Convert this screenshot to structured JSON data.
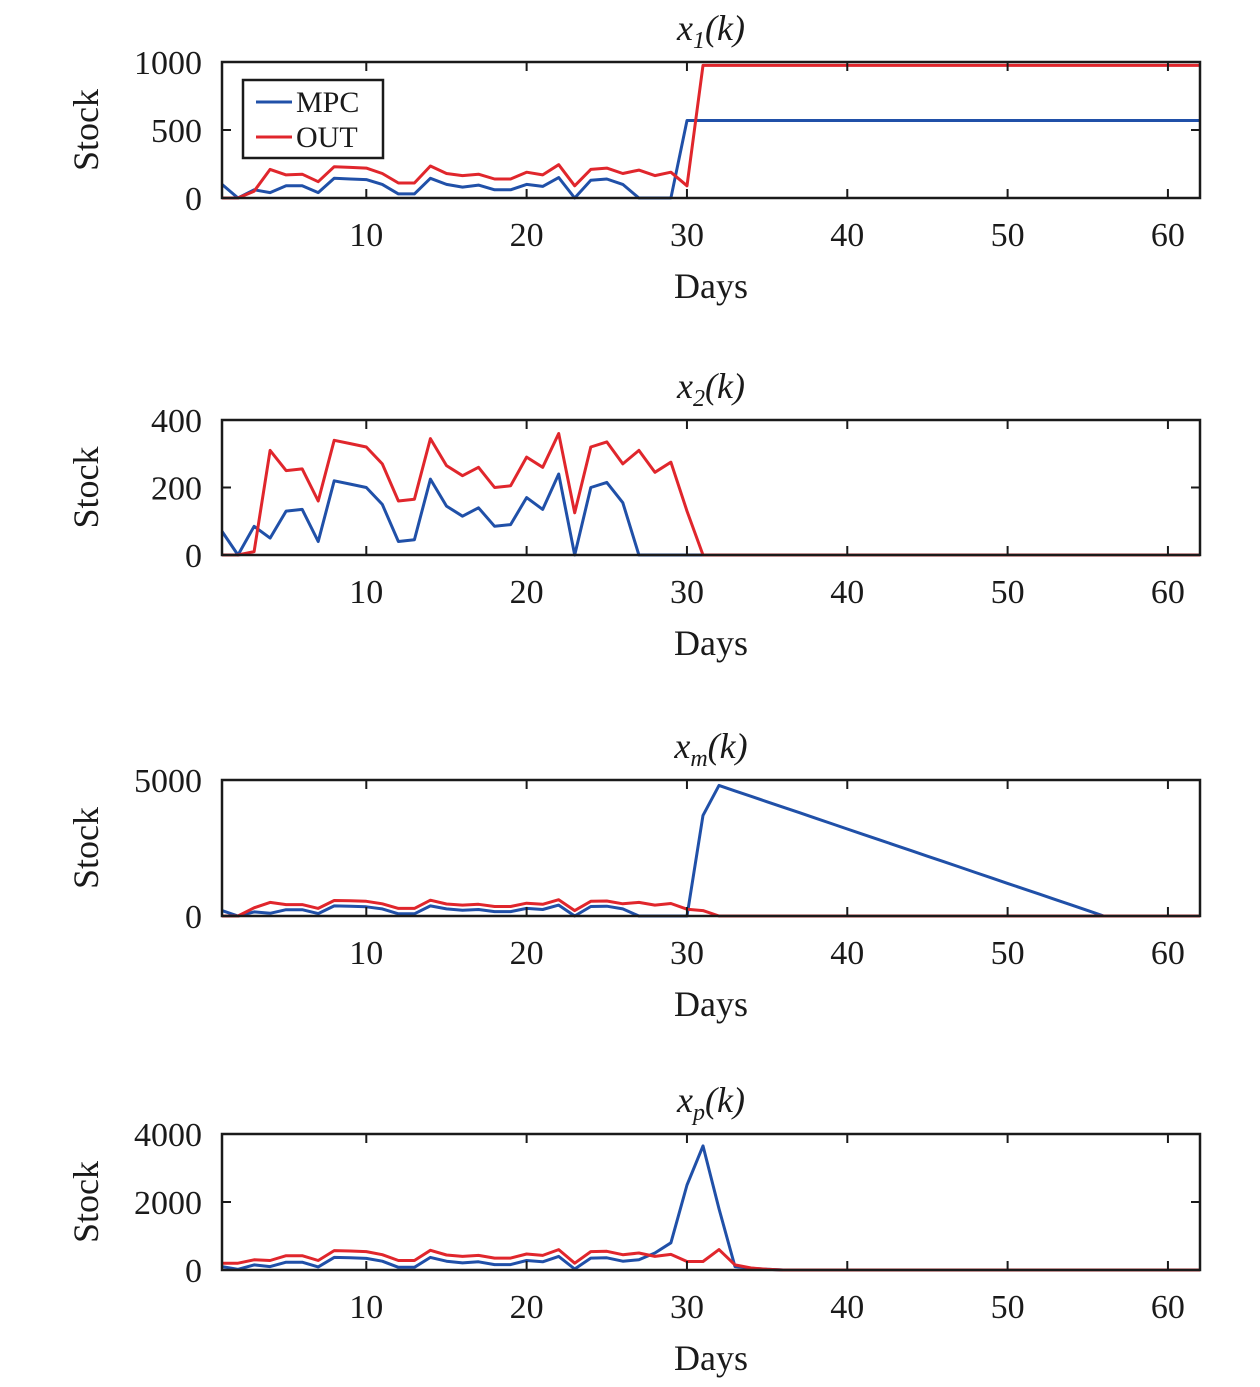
{
  "colors": {
    "MPC": "#2050a8",
    "OUT": "#e0262c"
  },
  "legend": {
    "entries": [
      "MPC",
      "OUT"
    ],
    "placement": "top-left"
  },
  "chart_data": [
    {
      "type": "line",
      "title": "x",
      "title_sub": "1",
      "title_arg": "(k)",
      "xlabel": "Days",
      "ylabel": "Stock",
      "xlim": [
        1,
        62
      ],
      "ylim": [
        0,
        1000
      ],
      "xticks": [
        10,
        20,
        30,
        40,
        50,
        60
      ],
      "yticks": [
        0,
        500,
        1000
      ],
      "x": [
        1,
        2,
        3,
        4,
        5,
        6,
        7,
        8,
        9,
        10,
        11,
        12,
        13,
        14,
        15,
        16,
        17,
        18,
        19,
        20,
        21,
        22,
        23,
        24,
        25,
        26,
        27,
        28,
        29,
        30,
        31,
        32,
        33,
        34,
        35,
        36,
        37,
        38,
        39,
        40,
        41,
        42,
        43,
        44,
        45,
        46,
        47,
        48,
        49,
        50,
        51,
        52,
        53,
        54,
        55,
        56,
        57,
        58,
        59,
        60,
        61,
        62
      ],
      "series": [
        {
          "name": "MPC",
          "values": [
            100,
            0,
            60,
            40,
            90,
            90,
            40,
            145,
            140,
            135,
            100,
            30,
            30,
            145,
            100,
            80,
            95,
            60,
            60,
            100,
            85,
            150,
            0,
            130,
            140,
            100,
            0,
            0,
            0,
            570,
            570,
            570,
            570,
            570,
            570,
            570,
            570,
            570,
            570,
            570,
            570,
            570,
            570,
            570,
            570,
            570,
            570,
            570,
            570,
            570,
            570,
            570,
            570,
            570,
            570,
            570,
            570,
            570,
            570,
            570,
            570,
            570
          ]
        },
        {
          "name": "OUT",
          "values": [
            0,
            0,
            50,
            210,
            170,
            175,
            120,
            230,
            225,
            220,
            180,
            110,
            110,
            235,
            180,
            165,
            175,
            140,
            140,
            190,
            170,
            245,
            90,
            210,
            220,
            180,
            205,
            165,
            190,
            90,
            975,
            975,
            975,
            975,
            975,
            975,
            975,
            975,
            975,
            975,
            975,
            975,
            975,
            975,
            975,
            975,
            975,
            975,
            975,
            975,
            975,
            975,
            975,
            975,
            975,
            975,
            975,
            975,
            975,
            975,
            975,
            975
          ]
        }
      ]
    },
    {
      "type": "line",
      "title": "x",
      "title_sub": "2",
      "title_arg": "(k)",
      "xlabel": "Days",
      "ylabel": "Stock",
      "xlim": [
        1,
        62
      ],
      "ylim": [
        0,
        400
      ],
      "xticks": [
        10,
        20,
        30,
        40,
        50,
        60
      ],
      "yticks": [
        0,
        200,
        400
      ],
      "x": [
        1,
        2,
        3,
        4,
        5,
        6,
        7,
        8,
        9,
        10,
        11,
        12,
        13,
        14,
        15,
        16,
        17,
        18,
        19,
        20,
        21,
        22,
        23,
        24,
        25,
        26,
        27,
        28,
        29,
        30,
        31,
        32,
        33,
        34,
        35,
        36,
        37,
        38,
        39,
        40,
        41,
        42,
        43,
        44,
        45,
        46,
        47,
        48,
        49,
        50,
        51,
        52,
        53,
        54,
        55,
        56,
        57,
        58,
        59,
        60,
        61,
        62
      ],
      "series": [
        {
          "name": "MPC",
          "values": [
            70,
            0,
            85,
            50,
            130,
            135,
            40,
            220,
            210,
            200,
            150,
            40,
            45,
            225,
            145,
            115,
            140,
            85,
            90,
            170,
            135,
            240,
            0,
            200,
            215,
            155,
            0,
            0,
            0,
            0,
            0,
            0,
            0,
            0,
            0,
            0,
            0,
            0,
            0,
            0,
            0,
            0,
            0,
            0,
            0,
            0,
            0,
            0,
            0,
            0,
            0,
            0,
            0,
            0,
            0,
            0,
            0,
            0,
            0,
            0,
            0,
            0
          ]
        },
        {
          "name": "OUT",
          "values": [
            0,
            0,
            10,
            310,
            250,
            255,
            160,
            340,
            330,
            320,
            270,
            160,
            165,
            345,
            265,
            235,
            260,
            200,
            205,
            290,
            260,
            360,
            125,
            320,
            335,
            270,
            310,
            245,
            275,
            130,
            0,
            0,
            0,
            0,
            0,
            0,
            0,
            0,
            0,
            0,
            0,
            0,
            0,
            0,
            0,
            0,
            0,
            0,
            0,
            0,
            0,
            0,
            0,
            0,
            0,
            0,
            0,
            0,
            0,
            0,
            0,
            0
          ]
        }
      ]
    },
    {
      "type": "line",
      "title": "x",
      "title_sub": "m",
      "title_arg": "(k)",
      "xlabel": "Days",
      "ylabel": "Stock",
      "xlim": [
        1,
        62
      ],
      "ylim": [
        0,
        5000
      ],
      "xticks": [
        10,
        20,
        30,
        40,
        50,
        60
      ],
      "yticks": [
        0,
        5000
      ],
      "x": [
        1,
        2,
        3,
        4,
        5,
        6,
        7,
        8,
        9,
        10,
        11,
        12,
        13,
        14,
        15,
        16,
        17,
        18,
        19,
        20,
        21,
        22,
        23,
        24,
        25,
        26,
        27,
        28,
        29,
        30,
        31,
        32,
        33,
        34,
        35,
        36,
        37,
        38,
        39,
        40,
        41,
        42,
        43,
        44,
        45,
        46,
        47,
        48,
        49,
        50,
        51,
        52,
        53,
        54,
        55,
        56,
        57,
        58,
        59,
        60,
        61,
        62
      ],
      "series": [
        {
          "name": "MPC",
          "values": [
            200,
            0,
            150,
            100,
            230,
            230,
            90,
            370,
            360,
            340,
            260,
            80,
            80,
            370,
            260,
            210,
            240,
            160,
            160,
            280,
            240,
            400,
            0,
            350,
            360,
            260,
            0,
            0,
            0,
            0,
            3700,
            4800,
            4600,
            4400,
            4200,
            4000,
            3800,
            3600,
            3400,
            3200,
            3000,
            2800,
            2600,
            2400,
            2200,
            2000,
            1800,
            1600,
            1400,
            1200,
            1000,
            800,
            600,
            400,
            200,
            0,
            0,
            0,
            0,
            0,
            0,
            0
          ]
        },
        {
          "name": "OUT",
          "values": [
            0,
            0,
            300,
            500,
            420,
            420,
            280,
            570,
            560,
            540,
            450,
            280,
            280,
            580,
            440,
            400,
            430,
            350,
            350,
            470,
            430,
            600,
            200,
            540,
            550,
            450,
            500,
            400,
            460,
            250,
            200,
            0,
            0,
            0,
            0,
            0,
            0,
            0,
            0,
            0,
            0,
            0,
            0,
            0,
            0,
            0,
            0,
            0,
            0,
            0,
            0,
            0,
            0,
            0,
            0,
            0,
            0,
            0,
            0,
            0,
            0,
            0
          ]
        }
      ]
    },
    {
      "type": "line",
      "title": "x",
      "title_sub": "p",
      "title_arg": "(k)",
      "xlabel": "Days",
      "ylabel": "Stock",
      "xlim": [
        1,
        62
      ],
      "ylim": [
        0,
        4000
      ],
      "xticks": [
        10,
        20,
        30,
        40,
        50,
        60
      ],
      "yticks": [
        0,
        2000,
        4000
      ],
      "x": [
        1,
        2,
        3,
        4,
        5,
        6,
        7,
        8,
        9,
        10,
        11,
        12,
        13,
        14,
        15,
        16,
        17,
        18,
        19,
        20,
        21,
        22,
        23,
        24,
        25,
        26,
        27,
        28,
        29,
        30,
        31,
        32,
        33,
        34,
        35,
        36,
        37,
        38,
        39,
        40,
        41,
        42,
        43,
        44,
        45,
        46,
        47,
        48,
        49,
        50,
        51,
        52,
        53,
        54,
        55,
        56,
        57,
        58,
        59,
        60,
        61,
        62
      ],
      "series": [
        {
          "name": "MPC",
          "values": [
            100,
            20,
            150,
            100,
            230,
            230,
            90,
            370,
            360,
            340,
            260,
            80,
            80,
            370,
            260,
            210,
            240,
            160,
            160,
            280,
            240,
            400,
            30,
            350,
            360,
            260,
            300,
            500,
            800,
            2500,
            3650,
            1800,
            100,
            50,
            20,
            0,
            0,
            0,
            0,
            0,
            0,
            0,
            0,
            0,
            0,
            0,
            0,
            0,
            0,
            0,
            0,
            0,
            0,
            0,
            0,
            0,
            0,
            0,
            0,
            0,
            0,
            0
          ]
        },
        {
          "name": "OUT",
          "values": [
            200,
            200,
            300,
            280,
            420,
            420,
            280,
            570,
            560,
            540,
            450,
            280,
            280,
            580,
            440,
            400,
            430,
            350,
            350,
            470,
            430,
            600,
            200,
            540,
            550,
            450,
            500,
            400,
            460,
            250,
            250,
            600,
            150,
            60,
            20,
            0,
            0,
            0,
            0,
            0,
            0,
            0,
            0,
            0,
            0,
            0,
            0,
            0,
            0,
            0,
            0,
            0,
            0,
            0,
            0,
            0,
            0,
            0,
            0,
            0,
            0,
            0
          ]
        }
      ]
    }
  ]
}
